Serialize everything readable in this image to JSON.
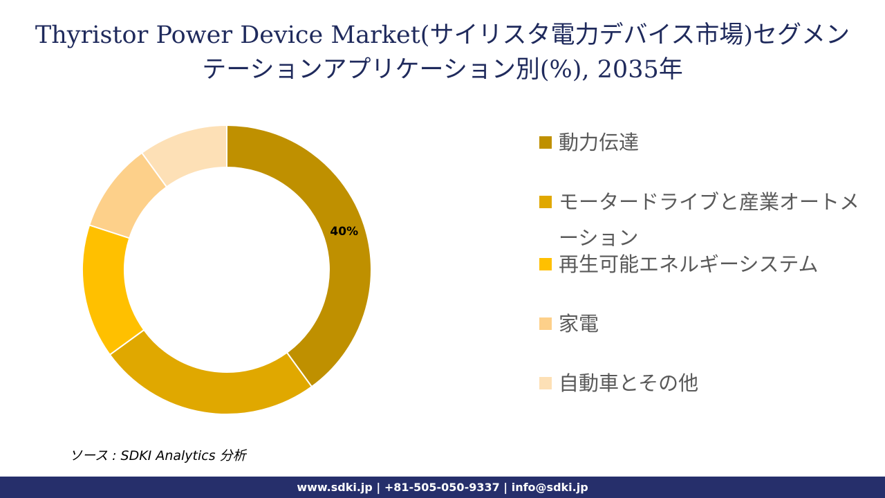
{
  "title": {
    "line1": "Thyristor Power Device Market(サイリスタ電力デバイス市場)セグメン",
    "line2": "テーションアプリケーション別(%), 2035年"
  },
  "chart_data": {
    "type": "pie",
    "variant": "donut",
    "categories": [
      "動力伝達",
      "モータードライブと産業オートメーション",
      "再生可能エネルギーシステム",
      "家電",
      "自動車とその他"
    ],
    "values": [
      40,
      25,
      15,
      10,
      10
    ],
    "colors": [
      "#bf9000",
      "#e0a800",
      "#ffc000",
      "#fdd08a",
      "#fde0b6"
    ],
    "data_labels": [
      "40%",
      "",
      "",
      "",
      ""
    ],
    "legend_position": "right",
    "start_angle": "12 o'clock",
    "direction": "clockwise"
  },
  "legend": {
    "items": [
      {
        "label": "動力伝達",
        "color": "#bf9000"
      },
      {
        "label": "モータードライブと産業オートメーション",
        "color": "#e0a800"
      },
      {
        "label": "再生可能エネルギーシステム",
        "color": "#ffc000"
      },
      {
        "label": "家電",
        "color": "#fdd08a"
      },
      {
        "label": "自動車とその他",
        "color": "#fde0b6"
      }
    ]
  },
  "source": "ソース : SDKI Analytics 分析",
  "footer": "www.sdki.jp | +81-505-050-9337 | info@sdki.jp"
}
